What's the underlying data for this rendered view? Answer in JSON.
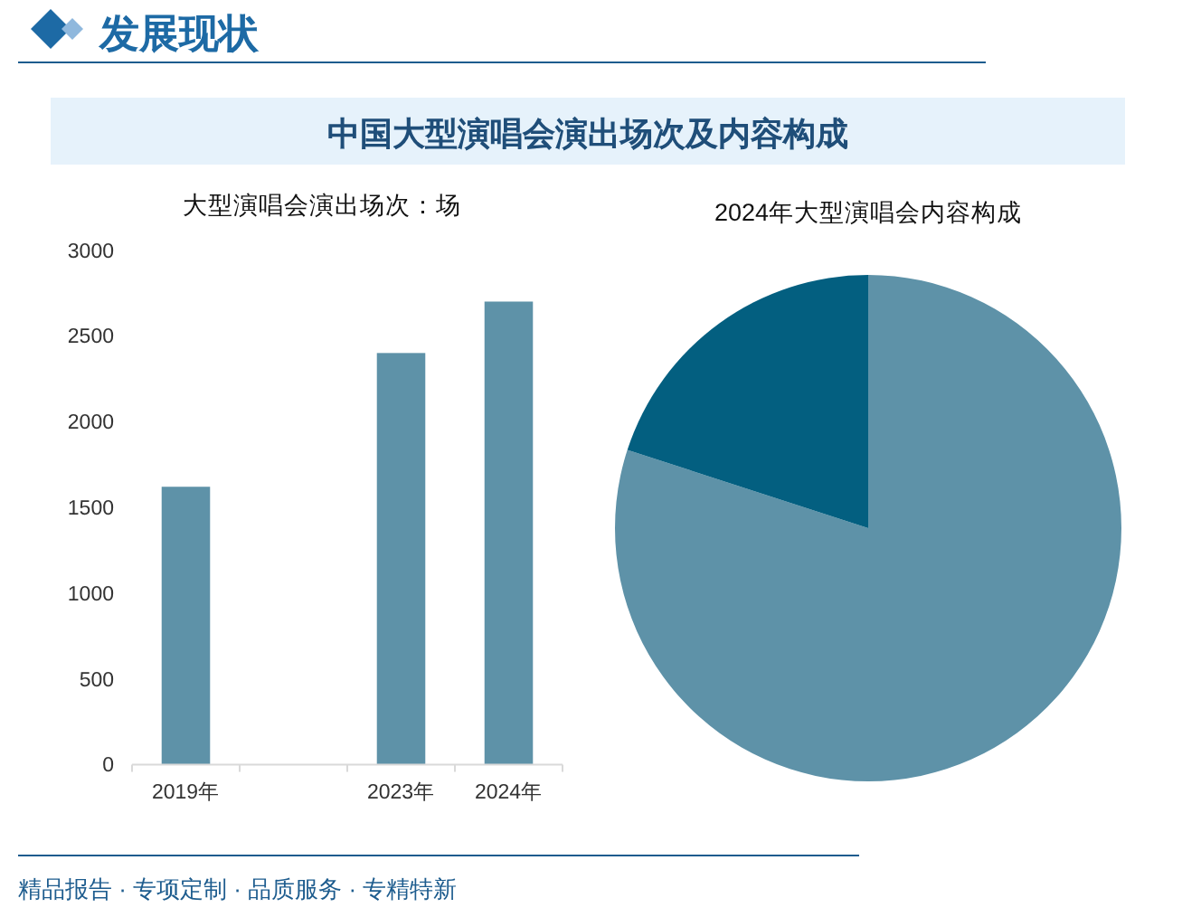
{
  "chart_data": [
    {
      "type": "bar",
      "title": "中国大型演唱会演出场次及内容构成",
      "ylabel": "大型演唱会演出场次：场",
      "categories": [
        "2019年",
        null,
        "2023年",
        "2024年"
      ],
      "values": [
        1620,
        null,
        2400,
        2700
      ],
      "color": "#5e92a8",
      "ylim": [
        0,
        3000
      ],
      "yticks": [
        0,
        500,
        1000,
        1500,
        2000,
        2500,
        3000
      ],
      "annotations": [
        "发展现状",
        "精品报告 · 专项定制 · 品质服务 · 专精特新"
      ]
    },
    {
      "type": "pie",
      "title": "2024年大型演唱会内容构成",
      "categories": [
        null,
        null
      ],
      "values": [
        80,
        20
      ],
      "colors": [
        "#5e92a8",
        "#035f80"
      ]
    }
  ]
}
